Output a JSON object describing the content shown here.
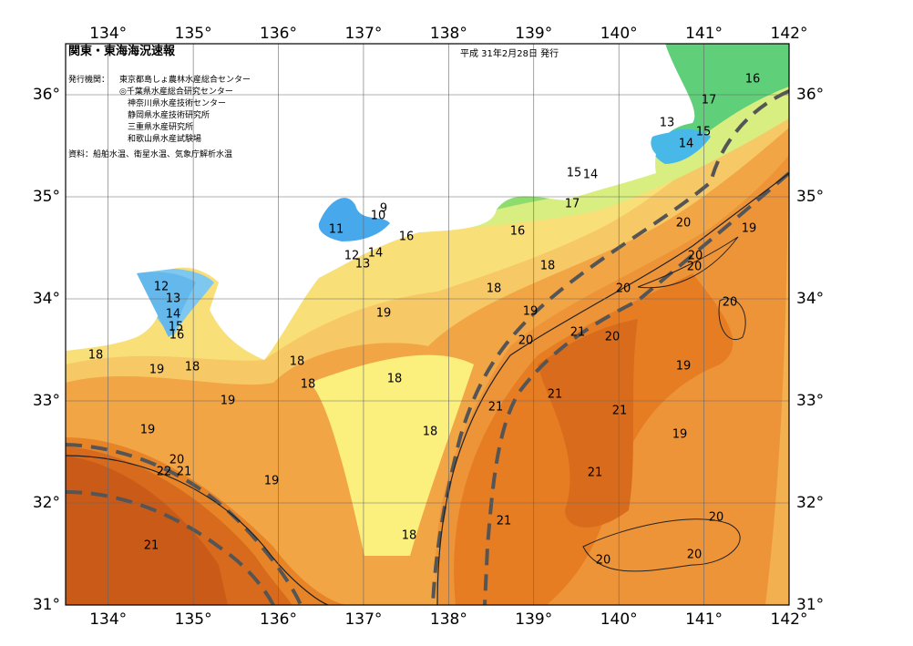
{
  "map": {
    "title": "関東・東海海況速報",
    "date": "平成 31年2月28日 発行",
    "issuers_label": "発行機関：",
    "issuers": [
      "東京都島しょ農林水産総合センター",
      "◎千葉県水産総合研究センター",
      "神奈川県水産技術センター",
      "静岡県水産技術研究所",
      "三重県水産研究所",
      "和歌山県水産試験場"
    ],
    "source": "資料：船舶水温、衛星水温、気象庁解析水温",
    "lon_range": [
      133.5,
      142
    ],
    "lat_range": [
      31,
      36.5
    ],
    "lon_ticks": [
      {
        "value": 134,
        "label": "134°"
      },
      {
        "value": 135,
        "label": "135°"
      },
      {
        "value": 136,
        "label": "136°"
      },
      {
        "value": 137,
        "label": "137°"
      },
      {
        "value": 138,
        "label": "138°"
      },
      {
        "value": 139,
        "label": "139°"
      },
      {
        "value": 140,
        "label": "140°"
      },
      {
        "value": 141,
        "label": "141°"
      },
      {
        "value": 142,
        "label": "142°"
      }
    ],
    "lat_ticks": [
      {
        "value": 31,
        "label": "31°"
      },
      {
        "value": 32,
        "label": "32°"
      },
      {
        "value": 33,
        "label": "33°"
      },
      {
        "value": 34,
        "label": "34°"
      },
      {
        "value": 35,
        "label": "35°"
      },
      {
        "value": 36,
        "label": "36°"
      }
    ],
    "contour_labels": [
      16,
      17,
      13,
      15,
      14,
      15,
      14,
      17,
      20,
      19,
      10,
      9,
      11,
      16,
      16,
      12,
      14,
      13,
      18,
      20,
      20,
      12,
      13,
      14,
      15,
      16,
      18,
      20,
      20,
      19,
      19,
      21,
      20,
      20,
      18,
      19,
      18,
      18,
      18,
      18,
      19,
      21,
      21,
      21,
      19,
      19,
      18,
      19,
      20,
      22,
      21,
      21,
      19,
      21,
      20,
      18,
      21,
      20,
      20
    ]
  }
}
